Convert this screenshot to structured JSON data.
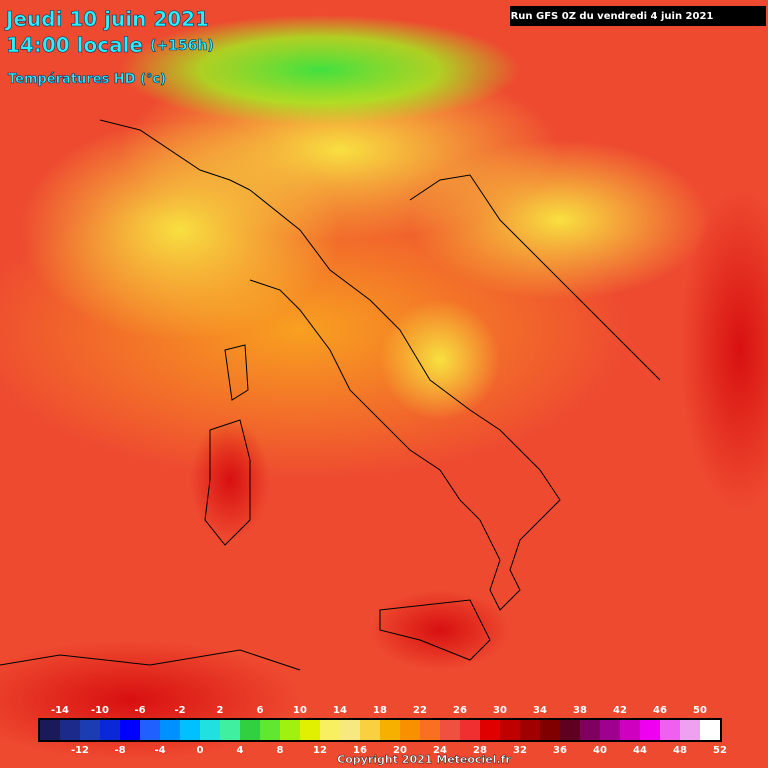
{
  "header": {
    "title": "Jeudi 10 juin 2021",
    "subtitle": "14:00 locale",
    "lead": "(+156h)",
    "variable": "Températures HD (°c)",
    "run": "Run GFS 0Z du vendredi 4 juin 2021"
  },
  "footer": {
    "copyright": "Copyright 2021 Meteociel.fr"
  },
  "legend": {
    "labels": [
      -14,
      -12,
      -10,
      -8,
      -6,
      -4,
      -2,
      0,
      2,
      4,
      6,
      8,
      10,
      12,
      14,
      16,
      18,
      20,
      22,
      24,
      26,
      28,
      30,
      32,
      34,
      36,
      38,
      40,
      42,
      44,
      46,
      48,
      50,
      52
    ],
    "colors": [
      "#1a1a5a",
      "#1c2a8c",
      "#1c3cb4",
      "#0a28d8",
      "#0000ff",
      "#2060ff",
      "#0090ff",
      "#00c0ff",
      "#20e0e0",
      "#40f0a0",
      "#30d040",
      "#60e830",
      "#a0f010",
      "#e0f000",
      "#f8f060",
      "#f8e880",
      "#f8d040",
      "#f8b000",
      "#f89000",
      "#f87020",
      "#f05040",
      "#f03030",
      "#e00000",
      "#c00000",
      "#a00000",
      "#800000",
      "#600020",
      "#800060",
      "#a00090",
      "#d000c0",
      "#f000f0",
      "#f060f0",
      "#f0a0f0",
      "#ffffff"
    ]
  }
}
